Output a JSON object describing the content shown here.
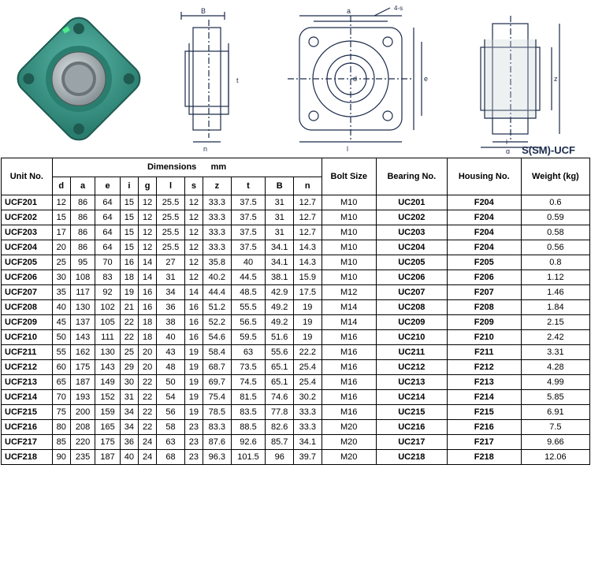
{
  "diagram": {
    "label_ssm": "S(SM)-UCF",
    "colors": {
      "photo_body": "#3a9e8f",
      "photo_center": "#b8c4c8",
      "line": "#1a2a4a"
    },
    "dim_labels": [
      "d",
      "a",
      "e",
      "i",
      "g",
      "l",
      "s",
      "z",
      "t",
      "B",
      "n"
    ]
  },
  "table": {
    "headers": {
      "unit": "Unit No.",
      "dimensions": "Dimensions",
      "dim_unit": "mm",
      "bolt": "Bolt Size",
      "bearing": "Bearing No.",
      "housing": "Housing No.",
      "weight": "Weight (kg)"
    },
    "dim_cols": [
      "d",
      "a",
      "e",
      "i",
      "g",
      "l",
      "s",
      "z",
      "t",
      "B",
      "n"
    ],
    "rows": [
      {
        "unit": "UCF201",
        "d": 12,
        "a": 86,
        "e": 64,
        "i": 15,
        "g": 12,
        "l": 25.5,
        "s": 12,
        "z": 33.3,
        "t": 37.5,
        "B": 31,
        "n": 12.7,
        "bolt": "M10",
        "bearing": "UC201",
        "housing": "F204",
        "weight": 0.6
      },
      {
        "unit": "UCF202",
        "d": 15,
        "a": 86,
        "e": 64,
        "i": 15,
        "g": 12,
        "l": 25.5,
        "s": 12,
        "z": 33.3,
        "t": 37.5,
        "B": 31,
        "n": 12.7,
        "bolt": "M10",
        "bearing": "UC202",
        "housing": "F204",
        "weight": 0.59
      },
      {
        "unit": "UCF203",
        "d": 17,
        "a": 86,
        "e": 64,
        "i": 15,
        "g": 12,
        "l": 25.5,
        "s": 12,
        "z": 33.3,
        "t": 37.5,
        "B": 31,
        "n": 12.7,
        "bolt": "M10",
        "bearing": "UC203",
        "housing": "F204",
        "weight": 0.58
      },
      {
        "unit": "UCF204",
        "d": 20,
        "a": 86,
        "e": 64,
        "i": 15,
        "g": 12,
        "l": 25.5,
        "s": 12,
        "z": 33.3,
        "t": 37.5,
        "B": 34.1,
        "n": 14.3,
        "bolt": "M10",
        "bearing": "UC204",
        "housing": "F204",
        "weight": 0.56
      },
      {
        "unit": "UCF205",
        "d": 25,
        "a": 95,
        "e": 70,
        "i": 16,
        "g": 14,
        "l": 27,
        "s": 12,
        "z": 35.8,
        "t": 40,
        "B": 34.1,
        "n": 14.3,
        "bolt": "M10",
        "bearing": "UC205",
        "housing": "F205",
        "weight": 0.8
      },
      {
        "unit": "UCF206",
        "d": 30,
        "a": 108,
        "e": 83,
        "i": 18,
        "g": 14,
        "l": 31,
        "s": 12,
        "z": 40.2,
        "t": 44.5,
        "B": 38.1,
        "n": 15.9,
        "bolt": "M10",
        "bearing": "UC206",
        "housing": "F206",
        "weight": 1.12
      },
      {
        "unit": "UCF207",
        "d": 35,
        "a": 117,
        "e": 92,
        "i": 19,
        "g": 16,
        "l": 34,
        "s": 14,
        "z": 44.4,
        "t": 48.5,
        "B": 42.9,
        "n": 17.5,
        "bolt": "M12",
        "bearing": "UC207",
        "housing": "F207",
        "weight": 1.46
      },
      {
        "unit": "UCF208",
        "d": 40,
        "a": 130,
        "e": 102,
        "i": 21,
        "g": 16,
        "l": 36,
        "s": 16,
        "z": 51.2,
        "t": 55.5,
        "B": 49.2,
        "n": 19,
        "bolt": "M14",
        "bearing": "UC208",
        "housing": "F208",
        "weight": 1.84
      },
      {
        "unit": "UCF209",
        "d": 45,
        "a": 137,
        "e": 105,
        "i": 22,
        "g": 18,
        "l": 38,
        "s": 16,
        "z": 52.2,
        "t": 56.5,
        "B": 49.2,
        "n": 19,
        "bolt": "M14",
        "bearing": "UC209",
        "housing": "F209",
        "weight": 2.15
      },
      {
        "unit": "UCF210",
        "d": 50,
        "a": 143,
        "e": 111,
        "i": 22,
        "g": 18,
        "l": 40,
        "s": 16,
        "z": 54.6,
        "t": 59.5,
        "B": 51.6,
        "n": 19,
        "bolt": "M16",
        "bearing": "UC210",
        "housing": "F210",
        "weight": 2.42
      },
      {
        "unit": "UCF211",
        "d": 55,
        "a": 162,
        "e": 130,
        "i": 25,
        "g": 20,
        "l": 43,
        "s": 19,
        "z": 58.4,
        "t": 63,
        "B": 55.6,
        "n": 22.2,
        "bolt": "M16",
        "bearing": "UC211",
        "housing": "F211",
        "weight": 3.31
      },
      {
        "unit": "UCF212",
        "d": 60,
        "a": 175,
        "e": 143,
        "i": 29,
        "g": 20,
        "l": 48,
        "s": 19,
        "z": 68.7,
        "t": 73.5,
        "B": 65.1,
        "n": 25.4,
        "bolt": "M16",
        "bearing": "UC212",
        "housing": "F212",
        "weight": 4.28
      },
      {
        "unit": "UCF213",
        "d": 65,
        "a": 187,
        "e": 149,
        "i": 30,
        "g": 22,
        "l": 50,
        "s": 19,
        "z": 69.7,
        "t": 74.5,
        "B": 65.1,
        "n": 25.4,
        "bolt": "M16",
        "bearing": "UC213",
        "housing": "F213",
        "weight": 4.99
      },
      {
        "unit": "UCF214",
        "d": 70,
        "a": 193,
        "e": 152,
        "i": 31,
        "g": 22,
        "l": 54,
        "s": 19,
        "z": 75.4,
        "t": 81.5,
        "B": 74.6,
        "n": 30.2,
        "bolt": "M16",
        "bearing": "UC214",
        "housing": "F214",
        "weight": 5.85
      },
      {
        "unit": "UCF215",
        "d": 75,
        "a": 200,
        "e": 159,
        "i": 34,
        "g": 22,
        "l": 56,
        "s": 19,
        "z": 78.5,
        "t": 83.5,
        "B": 77.8,
        "n": 33.3,
        "bolt": "M16",
        "bearing": "UC215",
        "housing": "F215",
        "weight": 6.91
      },
      {
        "unit": "UCF216",
        "d": 80,
        "a": 208,
        "e": 165,
        "i": 34,
        "g": 22,
        "l": 58,
        "s": 23,
        "z": 83.3,
        "t": 88.5,
        "B": 82.6,
        "n": 33.3,
        "bolt": "M20",
        "bearing": "UC216",
        "housing": "F216",
        "weight": 7.5
      },
      {
        "unit": "UCF217",
        "d": 85,
        "a": 220,
        "e": 175,
        "i": 36,
        "g": 24,
        "l": 63,
        "s": 23,
        "z": 87.6,
        "t": 92.6,
        "B": 85.7,
        "n": 34.1,
        "bolt": "M20",
        "bearing": "UC217",
        "housing": "F217",
        "weight": 9.66
      },
      {
        "unit": "UCF218",
        "d": 90,
        "a": 235,
        "e": 187,
        "i": 40,
        "g": 24,
        "l": 68,
        "s": 23,
        "z": 96.3,
        "t": 101.5,
        "B": 96,
        "n": 39.7,
        "bolt": "M20",
        "bearing": "UC218",
        "housing": "F218",
        "weight": 12.06
      }
    ]
  }
}
